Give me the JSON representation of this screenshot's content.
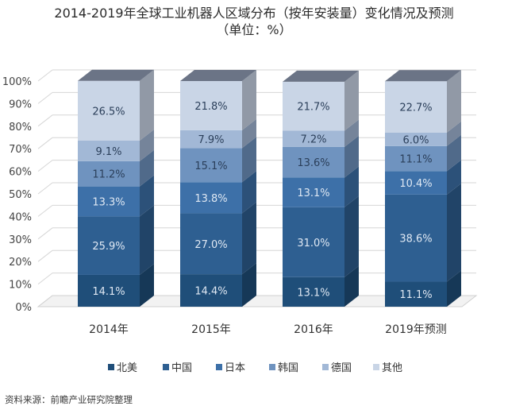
{
  "chart_data": {
    "type": "bar",
    "stacked": true,
    "style": "3d-stacked-column",
    "title": "2014-2019年全球工业机器人区域分布（按年安装量）变化情况及预测",
    "subtitle": "（单位：%）",
    "categories": [
      "2014年",
      "2015年",
      "2016年",
      "2019年预测"
    ],
    "series": [
      {
        "name": "北美",
        "values": [
          14.1,
          14.4,
          13.1,
          11.1
        ]
      },
      {
        "name": "中国",
        "values": [
          25.9,
          27.0,
          31.0,
          38.6
        ]
      },
      {
        "name": "日本",
        "values": [
          13.3,
          13.8,
          13.1,
          10.4
        ]
      },
      {
        "name": "韩国",
        "values": [
          11.2,
          15.1,
          13.6,
          11.1
        ]
      },
      {
        "name": "德国",
        "values": [
          9.1,
          7.9,
          7.2,
          6.0
        ]
      },
      {
        "name": "其他",
        "values": [
          26.5,
          21.8,
          21.7,
          22.7
        ]
      }
    ],
    "data_labels": [
      [
        "14.1%",
        "14.4%",
        "13.1%",
        "11.1%"
      ],
      [
        "25.9%",
        "27.0%",
        "31.0%",
        "38.6%"
      ],
      [
        "13.3%",
        "13.8%",
        "13.1%",
        "10.4%"
      ],
      [
        "11.2%",
        "15.1%",
        "13.6%",
        "11.1%"
      ],
      [
        "9.1%",
        "7.9%",
        "7.2%",
        "6.0%"
      ],
      [
        "26.5%",
        "21.8%",
        "21.7%",
        "22.7%"
      ]
    ],
    "y_ticks": [
      "0%",
      "10%",
      "20%",
      "30%",
      "40%",
      "50%",
      "60%",
      "70%",
      "80%",
      "90%",
      "100%"
    ],
    "ylim": [
      0,
      100
    ],
    "grid": true,
    "legend_position": "bottom",
    "colors": {
      "series": [
        "#1f4e79",
        "#2e5f91",
        "#3d70a8",
        "#6f93bf",
        "#a2b8d6",
        "#c9d5e6"
      ],
      "text": "#333333",
      "grid": "#d6d6d6"
    }
  },
  "footer": {
    "source": "资料来源：前瞻产业研究院整理"
  }
}
